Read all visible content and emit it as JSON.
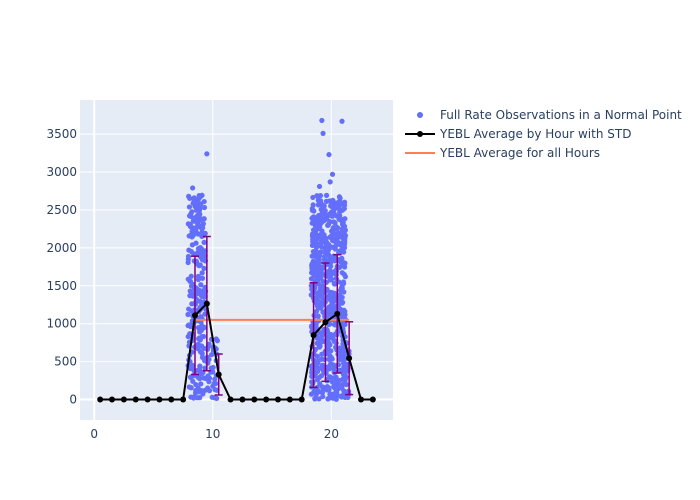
{
  "colors": {
    "plot_bg": "#E5ECF6",
    "grid": "#ffffff",
    "scatter": "#636EFA",
    "avg_line": "#000000",
    "err_bar": "#800080",
    "overall_line": "#FF7F50"
  },
  "legend": {
    "items": [
      {
        "label": "Full Rate Observations in a Normal Point",
        "kind": "marker"
      },
      {
        "label": "YEBL Average by Hour with STD",
        "kind": "line-marker"
      },
      {
        "label": "YEBL Average for all Hours",
        "kind": "line"
      }
    ]
  },
  "chart_data": {
    "type": "scatter",
    "title": "",
    "xlabel": "",
    "ylabel": "",
    "xlim": [
      -1.2,
      25.2
    ],
    "ylim": [
      -270,
      3950
    ],
    "x_ticks": [
      0,
      10,
      20
    ],
    "y_ticks": [
      0,
      500,
      1000,
      1500,
      2000,
      2500,
      3000,
      3500
    ],
    "grid": true,
    "legend_position": "top-right outside",
    "series": [
      {
        "name": "Full Rate Observations in a Normal Point",
        "kind": "scatter",
        "clusters": [
          {
            "x_range": [
              7.9,
              9.4
            ],
            "y_range": [
              0,
              2700
            ],
            "count": 260
          },
          {
            "x_range": [
              9.4,
              10.4
            ],
            "y_range": [
              0,
              800
            ],
            "count": 40
          },
          {
            "x_range": [
              18.3,
              21.2
            ],
            "y_range": [
              0,
              2700
            ],
            "count": 700
          },
          {
            "x_range": [
              21.0,
              21.5
            ],
            "y_range": [
              0,
              750
            ],
            "count": 40
          }
        ],
        "outliers": [
          {
            "x": 9.5,
            "y": 3240
          },
          {
            "x": 8.3,
            "y": 2790
          },
          {
            "x": 19.2,
            "y": 3680
          },
          {
            "x": 19.3,
            "y": 3510
          },
          {
            "x": 20.9,
            "y": 3670
          },
          {
            "x": 19.8,
            "y": 3230
          },
          {
            "x": 20.1,
            "y": 2970
          },
          {
            "x": 19.0,
            "y": 2810
          },
          {
            "x": 19.9,
            "y": 2870
          }
        ]
      },
      {
        "name": "YEBL Average by Hour with STD",
        "kind": "line",
        "x": [
          0.5,
          1.5,
          2.5,
          3.5,
          4.5,
          5.5,
          6.5,
          7.5,
          8.5,
          9.5,
          10.5,
          11.5,
          12.5,
          13.5,
          14.5,
          15.5,
          16.5,
          17.5,
          18.5,
          19.5,
          20.5,
          21.5,
          22.5,
          23.5
        ],
        "y": [
          0,
          0,
          0,
          0,
          0,
          0,
          0,
          0,
          1110,
          1265,
          330,
          0,
          0,
          0,
          0,
          0,
          0,
          0,
          850,
          1020,
          1130,
          545,
          0,
          0
        ],
        "std": [
          0,
          0,
          0,
          0,
          0,
          0,
          0,
          0,
          780,
          885,
          270,
          0,
          0,
          0,
          0,
          0,
          0,
          0,
          690,
          780,
          780,
          480,
          0,
          0
        ]
      },
      {
        "name": "YEBL Average for all Hours",
        "kind": "line",
        "x": [
          8.5,
          21.5
        ],
        "y": [
          1050,
          1050
        ]
      }
    ]
  }
}
